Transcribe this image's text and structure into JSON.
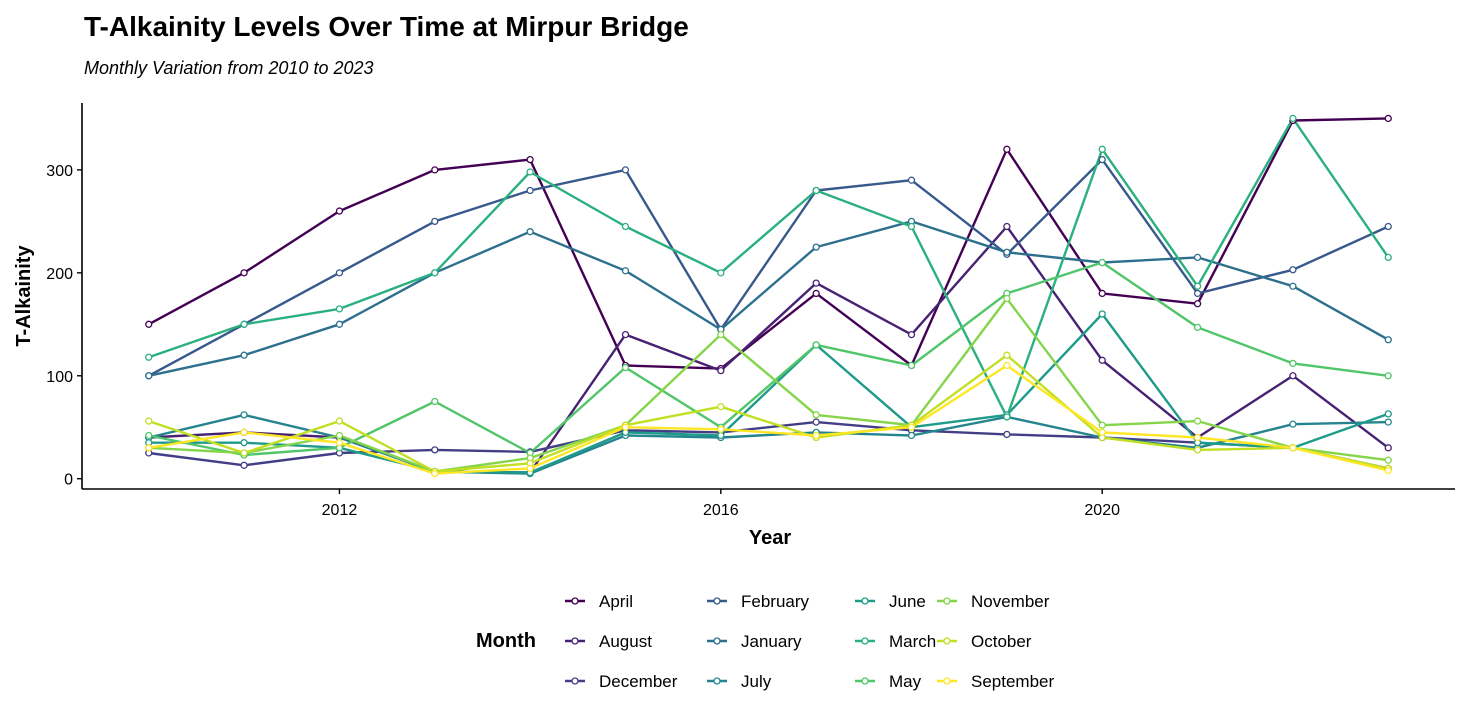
{
  "chart_data": {
    "type": "line",
    "title": "T-Alkainity Levels Over Time at Mirpur Bridge",
    "subtitle": "Monthly Variation from 2010 to 2023",
    "xlabel": "Year",
    "ylabel": "T-Alkainity",
    "xlim": [
      2009.3,
      2023.7
    ],
    "ylim": [
      -10,
      365
    ],
    "x_ticks": [
      2012,
      2016,
      2020
    ],
    "y_ticks": [
      0,
      100,
      200,
      300
    ],
    "grid": false,
    "legend_title": "Month",
    "legend_position": "bottom",
    "x": [
      2010,
      2011,
      2012,
      2013,
      2014,
      2015,
      2016,
      2017,
      2018,
      2019,
      2020,
      2021,
      2022,
      2023
    ],
    "series": [
      {
        "name": "April",
        "color": "#440154",
        "values": [
          150,
          200,
          260,
          300,
          310,
          110,
          107,
          180,
          110,
          320,
          180,
          170,
          348,
          350
        ]
      },
      {
        "name": "August",
        "color": "#482173",
        "values": [
          40,
          45,
          40,
          7,
          6,
          140,
          105,
          190,
          140,
          245,
          115,
          40,
          100,
          30
        ]
      },
      {
        "name": "December",
        "color": "#433E85",
        "values": [
          25,
          13,
          25,
          28,
          26,
          47,
          45,
          55,
          47,
          43,
          40,
          35,
          30,
          10
        ]
      },
      {
        "name": "February",
        "color": "#38598C",
        "values": [
          100,
          150,
          200,
          250,
          280,
          300,
          145,
          280,
          290,
          218,
          310,
          180,
          203,
          245
        ]
      },
      {
        "name": "January",
        "color": "#2D708E",
        "values": [
          100,
          120,
          150,
          200,
          240,
          202,
          145,
          225,
          250,
          220,
          210,
          215,
          187,
          135
        ]
      },
      {
        "name": "July",
        "color": "#25858E",
        "values": [
          40,
          62,
          40,
          7,
          5,
          42,
          40,
          45,
          42,
          60,
          40,
          30,
          53,
          55
        ]
      },
      {
        "name": "June",
        "color": "#1E9B8A",
        "values": [
          35,
          35,
          30,
          7,
          6,
          45,
          42,
          130,
          50,
          62,
          160,
          35,
          30,
          63
        ]
      },
      {
        "name": "March",
        "color": "#2BB07F",
        "values": [
          118,
          150,
          165,
          200,
          298,
          245,
          200,
          280,
          245,
          60,
          320,
          187,
          350,
          215
        ]
      },
      {
        "name": "May",
        "color": "#51C56A",
        "values": [
          42,
          23,
          30,
          75,
          25,
          108,
          50,
          130,
          110,
          180,
          210,
          147,
          112,
          100
        ]
      },
      {
        "name": "November",
        "color": "#85D54A",
        "values": [
          30,
          25,
          42,
          7,
          20,
          52,
          140,
          62,
          52,
          175,
          52,
          56,
          30,
          18
        ]
      },
      {
        "name": "October",
        "color": "#C2DF23",
        "values": [
          56,
          25,
          56,
          7,
          15,
          52,
          70,
          40,
          52,
          120,
          40,
          28,
          30,
          10
        ]
      },
      {
        "name": "September",
        "color": "#FDE725",
        "values": [
          30,
          45,
          35,
          5,
          10,
          50,
          48,
          42,
          50,
          110,
          45,
          40,
          30,
          8
        ]
      }
    ]
  }
}
